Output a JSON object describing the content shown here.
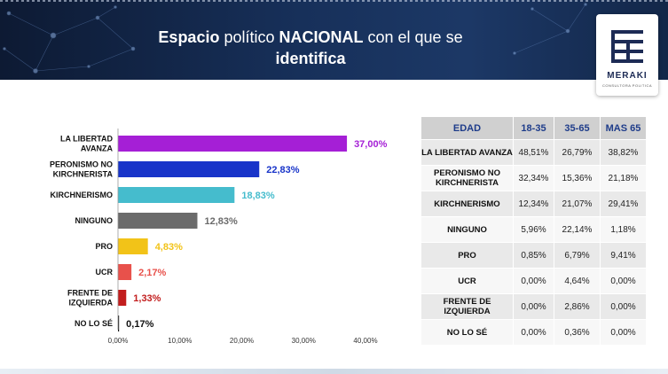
{
  "header": {
    "title_parts": [
      {
        "text": "Espacio",
        "bold": true
      },
      {
        "text": " político ",
        "bold": false
      },
      {
        "text": "NACIONAL",
        "bold": true
      },
      {
        "text": " con el que se",
        "bold": false
      }
    ],
    "title_line2": "identifica"
  },
  "logo": {
    "text": "MERAKI",
    "subtext": "CONSULTORA POLITICA"
  },
  "colors": {
    "header_bg": "#17305a",
    "table_header_text": "#1e3c8a"
  },
  "chart_data": {
    "type": "bar",
    "orientation": "horizontal",
    "categories": [
      "LA LIBERTAD AVANZA",
      "PERONISMO NO KIRCHNERISTA",
      "KIRCHNERISMO",
      "NINGUNO",
      "PRO",
      "UCR",
      "FRENTE DE IZQUIERDA",
      "NO LO SÉ"
    ],
    "category_lines": [
      [
        "LA LIBERTAD",
        "AVANZA"
      ],
      [
        "PERONISMO NO",
        "KIRCHNERISTA"
      ],
      [
        "KIRCHNERISMO"
      ],
      [
        "NINGUNO"
      ],
      [
        "PRO"
      ],
      [
        "UCR"
      ],
      [
        "FRENTE DE",
        "IZQUIERDA"
      ],
      [
        "NO LO SÉ"
      ]
    ],
    "values": [
      37.0,
      22.83,
      18.83,
      12.83,
      4.83,
      2.17,
      1.33,
      0.17
    ],
    "value_labels": [
      "37,00%",
      "22,83%",
      "18,83%",
      "12,83%",
      "4,83%",
      "2,17%",
      "1,33%",
      "0,17%"
    ],
    "colors": [
      "#a51fd6",
      "#1834c9",
      "#45bccd",
      "#6b6b6b",
      "#f2c318",
      "#e8514b",
      "#c21d1d",
      "#111111"
    ],
    "label_colors": [
      "#a51fd6",
      "#1834c9",
      "#45bccd",
      "#6b6b6b",
      "#f2c318",
      "#e8514b",
      "#c21d1d",
      "#111111"
    ],
    "xlim": [
      0,
      40
    ],
    "xticks": [
      0,
      10,
      20,
      30,
      40
    ],
    "xtick_labels": [
      "0,00%",
      "10,00%",
      "20,00%",
      "30,00%",
      "40,00%"
    ],
    "grid": false
  },
  "table": {
    "headers": [
      "EDAD",
      "18-35",
      "35-65",
      "MAS 65"
    ],
    "rows": [
      {
        "label": "LA LIBERTAD AVANZA",
        "values": [
          "48,51%",
          "26,79%",
          "38,82%"
        ]
      },
      {
        "label": "PERONISMO NO KIRCHNERISTA",
        "values": [
          "32,34%",
          "15,36%",
          "21,18%"
        ]
      },
      {
        "label": "KIRCHNERISMO",
        "values": [
          "12,34%",
          "21,07%",
          "29,41%"
        ]
      },
      {
        "label": "NINGUNO",
        "values": [
          "5,96%",
          "22,14%",
          "1,18%"
        ]
      },
      {
        "label": "PRO",
        "values": [
          "0,85%",
          "6,79%",
          "9,41%"
        ]
      },
      {
        "label": "UCR",
        "values": [
          "0,00%",
          "4,64%",
          "0,00%"
        ]
      },
      {
        "label": "FRENTE DE IZQUIERDA",
        "values": [
          "0,00%",
          "2,86%",
          "0,00%"
        ]
      },
      {
        "label": "NO LO SÉ",
        "values": [
          "0,00%",
          "0,36%",
          "0,00%"
        ]
      }
    ]
  }
}
